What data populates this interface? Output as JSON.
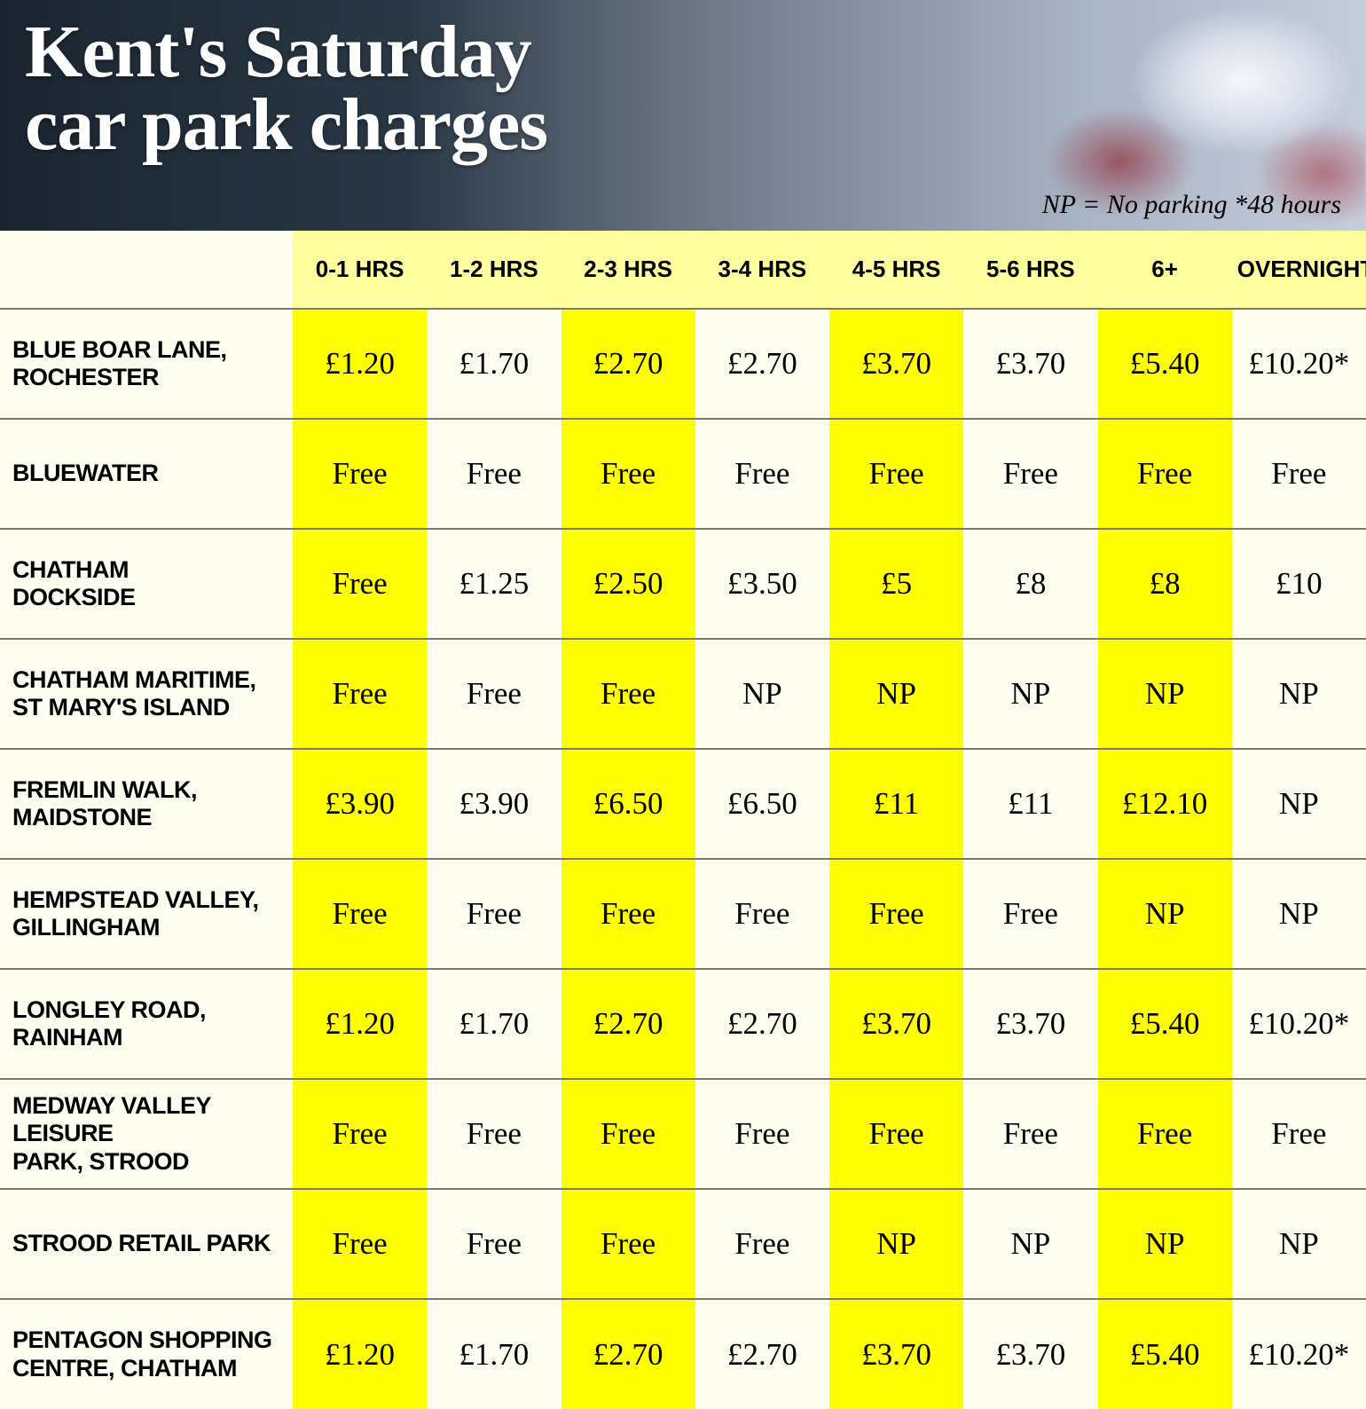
{
  "header": {
    "title_line1": "Kent's Saturday",
    "title_line2": "car park charges",
    "note": "NP = No parking *48 hours"
  },
  "colors": {
    "header_bg_left": "#1a2530",
    "header_bg_right": "#c5ccda",
    "title_color": "#ffffff",
    "note_color": "#000000",
    "col_header_bg": "#ffffa0",
    "loc_col_bg": "#fdfdf0",
    "yellow_cell": "#ffff00",
    "cream_cell": "#fdfdf0",
    "row_border": "#7a7a6a"
  },
  "typography": {
    "title_fontsize": 84,
    "title_fontweight": 900,
    "note_fontsize": 30,
    "col_header_fontsize": 26,
    "loc_fontsize": 27,
    "cell_fontsize": 35
  },
  "table": {
    "columns": [
      "0-1 HRS",
      "1-2 HRS",
      "2-3 HRS",
      "3-4 HRS",
      "4-5 HRS",
      "5-6 HRS",
      "6+",
      "OVERNIGHT"
    ],
    "rows": [
      {
        "location": [
          "BLUE BOAR LANE,",
          "ROCHESTER"
        ],
        "cells": [
          "£1.20",
          "£1.70",
          "£2.70",
          "£2.70",
          "£3.70",
          "£3.70",
          "£5.40",
          "£10.20*"
        ]
      },
      {
        "location": [
          "BLUEWATER"
        ],
        "cells": [
          "Free",
          "Free",
          "Free",
          "Free",
          "Free",
          "Free",
          "Free",
          "Free"
        ]
      },
      {
        "location": [
          "CHATHAM",
          "DOCKSIDE"
        ],
        "cells": [
          "Free",
          "£1.25",
          "£2.50",
          "£3.50",
          "£5",
          "£8",
          "£8",
          "£10"
        ]
      },
      {
        "location": [
          "CHATHAM MARITIME,",
          "ST MARY'S ISLAND"
        ],
        "cells": [
          "Free",
          "Free",
          "Free",
          "NP",
          "NP",
          "NP",
          "NP",
          "NP"
        ]
      },
      {
        "location": [
          "FREMLIN WALK,",
          "MAIDSTONE"
        ],
        "cells": [
          "£3.90",
          "£3.90",
          "£6.50",
          "£6.50",
          "£11",
          "£11",
          "£12.10",
          "NP"
        ]
      },
      {
        "location": [
          "HEMPSTEAD VALLEY,",
          "GILLINGHAM"
        ],
        "cells": [
          "Free",
          "Free",
          "Free",
          "Free",
          "Free",
          "Free",
          "NP",
          "NP"
        ]
      },
      {
        "location": [
          "LONGLEY ROAD,",
          "RAINHAM"
        ],
        "cells": [
          "£1.20",
          "£1.70",
          "£2.70",
          "£2.70",
          "£3.70",
          "£3.70",
          "£5.40",
          "£10.20*"
        ]
      },
      {
        "location": [
          "MEDWAY VALLEY LEISURE",
          "PARK, STROOD"
        ],
        "cells": [
          "Free",
          "Free",
          "Free",
          "Free",
          "Free",
          "Free",
          "Free",
          "Free"
        ]
      },
      {
        "location": [
          "STROOD RETAIL PARK"
        ],
        "cells": [
          "Free",
          "Free",
          "Free",
          "Free",
          "NP",
          "NP",
          "NP",
          "NP"
        ]
      },
      {
        "location": [
          "PENTAGON SHOPPING",
          "CENTRE, CHATHAM"
        ],
        "cells": [
          "£1.20",
          "£1.70",
          "£2.70",
          "£2.70",
          "£3.70",
          "£3.70",
          "£5.40",
          "£10.20*"
        ]
      }
    ]
  }
}
